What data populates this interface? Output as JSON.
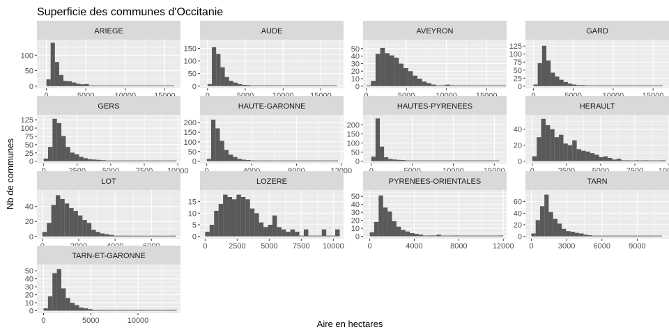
{
  "chart_data": {
    "type": "bar",
    "subtype": "faceted-histogram",
    "title": "Superficie des communes d'Occitanie",
    "xlabel": "Aire en hectares",
    "ylabel": "Nb de communes",
    "grid": true,
    "bins": 30,
    "colors": {
      "bar": "#595959",
      "panel_bg": "#ebebeb",
      "strip_bg": "#d9d9d9",
      "grid": "#ffffff",
      "tick_text": "#4d4d4d",
      "tick_mark": "#333333"
    },
    "facets": [
      {
        "name": "ARIEGE",
        "xlim": [
          -1200,
          17000
        ],
        "ylim": [
          -7,
          150
        ],
        "xticks": [
          0,
          5000,
          10000,
          15000
        ],
        "xtick_labels": [
          "0",
          "5000",
          "10000",
          "15000"
        ],
        "yticks": [
          0,
          50,
          100
        ],
        "ytick_labels": [
          "0",
          "50",
          "100"
        ],
        "bin_start": 0,
        "bin_width": 540,
        "counts": [
          22,
          140,
          78,
          36,
          17,
          16,
          12,
          8,
          6,
          7,
          2,
          1,
          0,
          0,
          1,
          0,
          0,
          0,
          1,
          0,
          0,
          0,
          0,
          0,
          0,
          0,
          0,
          0,
          0,
          1
        ]
      },
      {
        "name": "AUDE",
        "xlim": [
          -1000,
          18000
        ],
        "ylim": [
          -9,
          185
        ],
        "xticks": [
          0,
          5000,
          10000,
          15000
        ],
        "xtick_labels": [
          "0",
          "5000",
          "10000",
          "15000"
        ],
        "yticks": [
          0,
          50,
          100,
          150
        ],
        "ytick_labels": [
          "0",
          "50",
          "100",
          "150"
        ],
        "bin_start": 0,
        "bin_width": 570,
        "counts": [
          8,
          155,
          128,
          75,
          36,
          21,
          14,
          8,
          5,
          4,
          2,
          2,
          1,
          1,
          0,
          0,
          0,
          0,
          0,
          0,
          0,
          0,
          0,
          0,
          0,
          0,
          0,
          0,
          0,
          1
        ]
      },
      {
        "name": "AVEYRON",
        "xlim": [
          -400,
          17500
        ],
        "ylim": [
          -3,
          62
        ],
        "xticks": [
          0,
          5000,
          10000,
          15000
        ],
        "xtick_labels": [
          "0",
          "5000",
          "10000",
          "15000"
        ],
        "yticks": [
          0,
          10,
          20,
          30,
          40,
          50
        ],
        "ytick_labels": [
          "0",
          "10",
          "20",
          "30",
          "40",
          "50"
        ],
        "bin_start": 0,
        "bin_width": 580,
        "counts": [
          1,
          7,
          43,
          51,
          44,
          41,
          38,
          30,
          24,
          20,
          14,
          10,
          6,
          4,
          2,
          1,
          1,
          2,
          1,
          0,
          0,
          1,
          0,
          0,
          0,
          0,
          0,
          0,
          0,
          1
        ]
      },
      {
        "name": "GARD",
        "xlim": [
          -1000,
          17000
        ],
        "ylim": [
          -7,
          145
        ],
        "xticks": [
          0,
          5000,
          10000,
          15000
        ],
        "xtick_labels": [
          "0",
          "5000",
          "10000",
          "15000"
        ],
        "yticks": [
          0,
          25,
          50,
          75,
          100,
          125
        ],
        "ytick_labels": [
          "0",
          "25",
          "50",
          "75",
          "100",
          "125"
        ],
        "bin_start": 0,
        "bin_width": 540,
        "counts": [
          5,
          72,
          126,
          80,
          42,
          30,
          20,
          13,
          8,
          5,
          3,
          3,
          2,
          1,
          1,
          1,
          0,
          2,
          0,
          0,
          0,
          0,
          0,
          0,
          0,
          0,
          0,
          0,
          0,
          1
        ]
      },
      {
        "name": "GERS",
        "xlim": [
          -500,
          10200
        ],
        "ylim": [
          -7,
          140
        ],
        "xticks": [
          0,
          2500,
          5000,
          7500,
          10000
        ],
        "xtick_labels": [
          "0",
          "2500",
          "5000",
          "7500",
          "10000"
        ],
        "yticks": [
          0,
          25,
          50,
          75,
          100,
          125
        ],
        "ytick_labels": [
          "0",
          "25",
          "50",
          "75",
          "100",
          "125"
        ],
        "bin_start": 0,
        "bin_width": 330,
        "counts": [
          8,
          43,
          128,
          115,
          76,
          43,
          26,
          21,
          13,
          9,
          6,
          5,
          4,
          3,
          2,
          2,
          1,
          1,
          1,
          1,
          0,
          1,
          0,
          0,
          1,
          1,
          0,
          0,
          1,
          1
        ]
      },
      {
        "name": "HAUTE-GARONNE",
        "xlim": [
          -600,
          12200
        ],
        "ylim": [
          -12,
          240
        ],
        "xticks": [
          0,
          4000,
          8000,
          12000
        ],
        "xtick_labels": [
          "0",
          "4000",
          "8000",
          "12000"
        ],
        "yticks": [
          0,
          50,
          100,
          150,
          200
        ],
        "ytick_labels": [
          "0",
          "50",
          "100",
          "150",
          "200"
        ],
        "bin_start": 0,
        "bin_width": 390,
        "counts": [
          12,
          215,
          170,
          105,
          58,
          34,
          22,
          12,
          8,
          6,
          4,
          3,
          2,
          2,
          1,
          1,
          1,
          1,
          0,
          0,
          0,
          0,
          0,
          0,
          0,
          0,
          0,
          0,
          0,
          1
        ]
      },
      {
        "name": "HAUTES-PYRENEES",
        "xlim": [
          -1000,
          16500
        ],
        "ylim": [
          -13,
          255
        ],
        "xticks": [
          0,
          5000,
          10000,
          15000
        ],
        "xtick_labels": [
          "0",
          "5000",
          "10000",
          "15000"
        ],
        "yticks": [
          0,
          50,
          100,
          150,
          200
        ],
        "ytick_labels": [
          "0",
          "50",
          "100",
          "150",
          "200"
        ],
        "bin_start": 0,
        "bin_width": 520,
        "counts": [
          25,
          235,
          80,
          22,
          12,
          9,
          7,
          6,
          4,
          3,
          3,
          2,
          2,
          1,
          1,
          1,
          1,
          1,
          1,
          1,
          1,
          1,
          1,
          1,
          0,
          1,
          0,
          1,
          0,
          1
        ]
      },
      {
        "name": "HERAULT",
        "xlim": [
          -500,
          10000
        ],
        "ylim": [
          -3,
          58
        ],
        "xticks": [
          0,
          2500,
          5000,
          7500,
          10000
        ],
        "xtick_labels": [
          "0",
          "2500",
          "5000",
          "7500",
          "10000"
        ],
        "yticks": [
          0,
          20,
          40
        ],
        "ytick_labels": [
          "0",
          "20",
          "40"
        ],
        "bin_start": 0,
        "bin_width": 325,
        "counts": [
          6,
          30,
          53,
          45,
          40,
          30,
          33,
          22,
          20,
          26,
          15,
          13,
          12,
          10,
          8,
          5,
          6,
          4,
          2,
          3,
          1,
          1,
          0,
          1,
          0,
          1,
          0,
          0,
          0,
          1
        ]
      },
      {
        "name": "LOT",
        "xlim": [
          -300,
          7600
        ],
        "ylim": [
          -3,
          62
        ],
        "xticks": [
          0,
          2000,
          4000,
          6000
        ],
        "xtick_labels": [
          "0",
          "2000",
          "4000",
          "6000"
        ],
        "yticks": [
          0,
          20,
          40
        ],
        "ytick_labels": [
          "0",
          "20",
          "40"
        ],
        "bin_start": 0,
        "bin_width": 245,
        "counts": [
          6,
          18,
          42,
          55,
          50,
          44,
          38,
          34,
          28,
          22,
          18,
          9,
          6,
          4,
          3,
          2,
          1,
          1,
          1,
          1,
          0,
          1,
          0,
          0,
          1,
          0,
          0,
          0,
          0,
          1
        ]
      },
      {
        "name": "LOZERE",
        "xlim": [
          -400,
          10800
        ],
        "ylim": [
          -1,
          20
        ],
        "xticks": [
          0,
          2500,
          5000,
          7500,
          10000
        ],
        "xtick_labels": [
          "0",
          "2500",
          "5000",
          "7500",
          "10000"
        ],
        "yticks": [
          0,
          5,
          10,
          15
        ],
        "ytick_labels": [
          "0",
          "5",
          "10",
          "15"
        ],
        "bin_start": 0,
        "bin_width": 350,
        "counts": [
          2,
          5,
          11,
          14,
          18,
          17,
          16,
          18,
          17,
          16,
          12,
          10,
          6,
          4,
          5,
          9,
          4,
          3,
          2,
          3,
          2,
          0,
          3,
          0,
          0,
          0,
          3,
          0,
          0,
          3
        ]
      },
      {
        "name": "PYRENEES-ORIENTALES",
        "xlim": [
          -600,
          12300
        ],
        "ylim": [
          -3,
          58
        ],
        "xticks": [
          0,
          4000,
          8000,
          12000
        ],
        "xtick_labels": [
          "0",
          "4000",
          "8000",
          "12000"
        ],
        "yticks": [
          0,
          10,
          20,
          30,
          40,
          50
        ],
        "ytick_labels": [
          "0",
          "10",
          "20",
          "30",
          "40",
          "50"
        ],
        "bin_start": 0,
        "bin_width": 400,
        "counts": [
          5,
          18,
          51,
          36,
          31,
          19,
          12,
          8,
          6,
          4,
          3,
          2,
          0,
          1,
          1,
          2,
          0,
          0,
          0,
          1,
          0,
          0,
          0,
          0,
          0,
          0,
          0,
          0,
          0,
          1
        ]
      },
      {
        "name": "TARN",
        "xlim": [
          -500,
          11700
        ],
        "ylim": [
          -4,
          80
        ],
        "xticks": [
          0,
          3000,
          6000,
          9000
        ],
        "xtick_labels": [
          "0",
          "3000",
          "6000",
          "9000"
        ],
        "yticks": [
          0,
          20,
          40,
          60
        ],
        "ytick_labels": [
          "0",
          "20",
          "40",
          "60"
        ],
        "bin_start": 0,
        "bin_width": 370,
        "counts": [
          5,
          28,
          52,
          72,
          42,
          30,
          22,
          13,
          9,
          8,
          6,
          5,
          3,
          2,
          1,
          1,
          1,
          1,
          1,
          0,
          0,
          1,
          0,
          1,
          0,
          1,
          0,
          0,
          0,
          1
        ]
      },
      {
        "name": "TARN-ET-GARONNE",
        "xlim": [
          -700,
          14500
        ],
        "ylim": [
          -3,
          58
        ],
        "xticks": [
          0,
          5000,
          10000
        ],
        "xtick_labels": [
          "0",
          "5000",
          "10000"
        ],
        "yticks": [
          0,
          10,
          20,
          30,
          40,
          50
        ],
        "ytick_labels": [
          "0",
          "10",
          "20",
          "30",
          "40",
          "50"
        ],
        "bin_start": 0,
        "bin_width": 470,
        "counts": [
          3,
          18,
          47,
          52,
          28,
          16,
          10,
          7,
          4,
          3,
          2,
          1,
          1,
          1,
          0,
          1,
          0,
          1,
          0,
          0,
          0,
          1,
          0,
          0,
          0,
          0,
          0,
          0,
          0,
          1
        ]
      }
    ]
  }
}
